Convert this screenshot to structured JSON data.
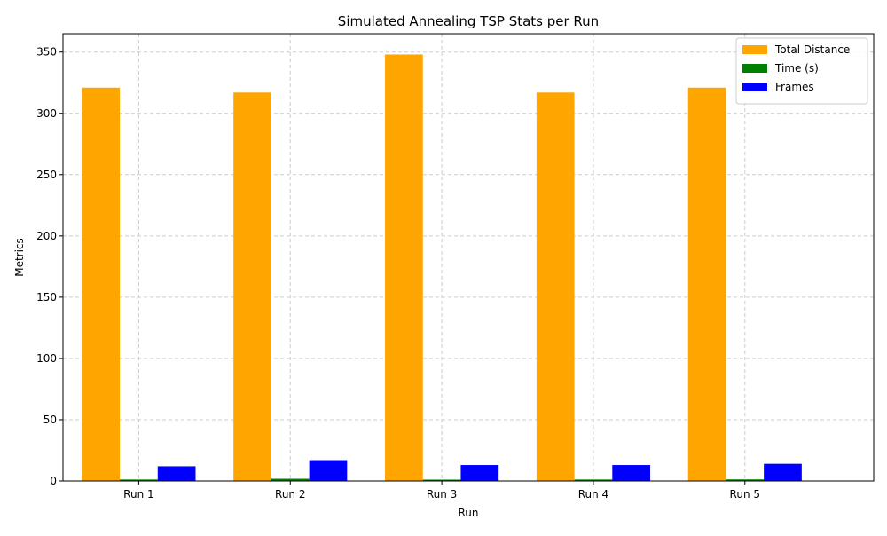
{
  "chart_data": {
    "type": "bar",
    "title": "Simulated Annealing TSP Stats per Run",
    "xlabel": "Run",
    "ylabel": "Metrics",
    "categories": [
      "Run 1",
      "Run 2",
      "Run 3",
      "Run 4",
      "Run 5"
    ],
    "series": [
      {
        "name": "Total Distance",
        "color": "#FFA500",
        "values": [
          321,
          317,
          348,
          317,
          321
        ]
      },
      {
        "name": "Time (s)",
        "color": "#008000",
        "values": [
          1.2,
          1.8,
          1.1,
          1.2,
          1.3
        ]
      },
      {
        "name": "Frames",
        "color": "#0000FF",
        "values": [
          12,
          17,
          13,
          13,
          14
        ]
      }
    ],
    "ylim": [
      0,
      365
    ],
    "yticks": [
      0,
      50,
      100,
      150,
      200,
      250,
      300,
      350
    ],
    "grid": true,
    "legend_position": "top-right"
  }
}
